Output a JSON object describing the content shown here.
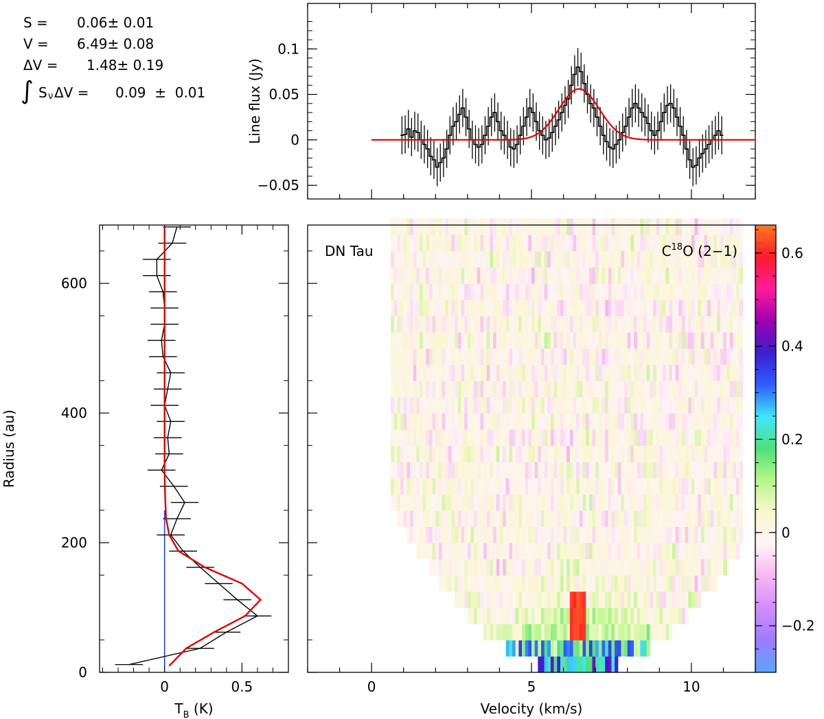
{
  "fit_results": {
    "s_label": "S =",
    "s_value": "0.06± 0.01",
    "v_label": "V =",
    "v_value": "6.49± 0.08",
    "dv_label": "ΔV =",
    "dv_value": "1.48± 0.19",
    "int_label": "∫S",
    "int_sub": "ν",
    "int_label2": "ΔV =",
    "int_value": "0.09  ±  0.01"
  },
  "colors": {
    "data": "#000000",
    "fit": "#e00000",
    "marker": "#1f3fdd"
  },
  "chart_data": [
    {
      "type": "line",
      "panel": "spectrum",
      "xlabel": "",
      "ylabel": "Line flux (Jy)",
      "xlim": [
        -2,
        12
      ],
      "ylim": [
        -0.065,
        0.15
      ],
      "yticks": [
        -0.05,
        0,
        0.05,
        0.1
      ],
      "ytick_labels": [
        "−0.05",
        "0",
        "0.05",
        "0.1"
      ],
      "xticks": [
        0,
        5,
        10
      ],
      "series": [
        {
          "style": "histogram-with-errorbars",
          "x": [
            0.95,
            1.05,
            1.15,
            1.25,
            1.35,
            1.45,
            1.55,
            1.65,
            1.75,
            1.85,
            1.95,
            2.05,
            2.15,
            2.25,
            2.35,
            2.45,
            2.55,
            2.65,
            2.75,
            2.85,
            2.95,
            3.05,
            3.15,
            3.25,
            3.35,
            3.45,
            3.55,
            3.65,
            3.75,
            3.85,
            3.95,
            4.05,
            4.15,
            4.25,
            4.35,
            4.45,
            4.55,
            4.65,
            4.75,
            4.85,
            4.95,
            5.05,
            5.15,
            5.25,
            5.35,
            5.45,
            5.55,
            5.65,
            5.75,
            5.85,
            5.95,
            6.05,
            6.15,
            6.25,
            6.35,
            6.45,
            6.55,
            6.65,
            6.75,
            6.85,
            6.95,
            7.05,
            7.15,
            7.25,
            7.35,
            7.45,
            7.55,
            7.65,
            7.75,
            7.85,
            7.95,
            8.05,
            8.15,
            8.25,
            8.35,
            8.45,
            8.55,
            8.65,
            8.75,
            8.85,
            8.95,
            9.05,
            9.15,
            9.25,
            9.35,
            9.45,
            9.55,
            9.65,
            9.75,
            9.85,
            9.95,
            10.05,
            10.15,
            10.25,
            10.35,
            10.45,
            10.55,
            10.65,
            10.75,
            10.85,
            10.95
          ],
          "y": [
            0.005,
            0.006,
            0.012,
            0.003,
            0.01,
            0.008,
            0.0,
            -0.005,
            -0.01,
            -0.018,
            -0.022,
            -0.03,
            -0.025,
            -0.02,
            -0.01,
            0.005,
            0.015,
            0.02,
            0.028,
            0.035,
            0.025,
            0.012,
            0.0,
            -0.005,
            -0.008,
            -0.005,
            0.005,
            0.015,
            0.025,
            0.03,
            0.02,
            0.01,
            0.005,
            0.0,
            -0.008,
            -0.01,
            -0.005,
            0.005,
            0.015,
            0.025,
            0.035,
            0.03,
            0.02,
            0.01,
            0.005,
            0.0,
            0.002,
            0.008,
            0.015,
            0.022,
            0.03,
            0.038,
            0.045,
            0.06,
            0.072,
            0.08,
            0.075,
            0.062,
            0.05,
            0.04,
            0.035,
            0.025,
            0.015,
            0.005,
            -0.002,
            -0.008,
            -0.01,
            -0.005,
            0.0,
            0.008,
            0.015,
            0.025,
            0.035,
            0.04,
            0.035,
            0.03,
            0.025,
            0.018,
            0.01,
            0.005,
            0.01,
            0.02,
            0.03,
            0.038,
            0.04,
            0.035,
            0.025,
            0.015,
            0.005,
            -0.01,
            -0.022,
            -0.03,
            -0.028,
            -0.02,
            -0.015,
            -0.01,
            -0.005,
            0.0,
            0.005,
            0.01,
            0.005
          ],
          "yerr": 0.021
        },
        {
          "style": "gaussian-fit",
          "amplitude": 0.056,
          "center": 6.49,
          "fwhm": 1.48,
          "x_range": [
            0,
            12
          ]
        }
      ]
    },
    {
      "type": "line",
      "panel": "radial-profile",
      "xlabel": "T",
      "xlabel_sub": "B",
      "xlabel_unit": " (K)",
      "ylabel": "Radius (au)",
      "xlim": [
        -0.42,
        0.8
      ],
      "ylim": [
        0,
        690
      ],
      "xticks": [
        0,
        0.5
      ],
      "xtick_labels": [
        "0",
        "0.5"
      ],
      "yticks": [
        0,
        200,
        400,
        600
      ],
      "ytick_labels": [
        "0",
        "200",
        "400",
        "600"
      ],
      "series": [
        {
          "style": "data-with-xerr",
          "r": [
            12,
            37,
            62,
            87,
            112,
            137,
            162,
            187,
            212,
            237,
            262,
            287,
            312,
            337,
            362,
            387,
            412,
            437,
            462,
            487,
            512,
            537,
            562,
            587,
            612,
            637,
            662,
            687
          ],
          "tb": [
            -0.23,
            0.23,
            0.4,
            0.6,
            0.47,
            0.35,
            0.23,
            0.12,
            0.04,
            0.08,
            0.13,
            0.06,
            -0.02,
            0.03,
            0.02,
            0.04,
            0.0,
            0.02,
            0.04,
            -0.01,
            -0.02,
            0.0,
            0.0,
            -0.01,
            -0.05,
            -0.05,
            0.05,
            0.08
          ],
          "xerr": 0.09
        },
        {
          "style": "model",
          "r": [
            10,
            37,
            62,
            87,
            112,
            137,
            162,
            187,
            212,
            237,
            262,
            287,
            312,
            337,
            362,
            387,
            412,
            437,
            462,
            487,
            512,
            537,
            562,
            587,
            612,
            637,
            662,
            687
          ],
          "tb": [
            0.03,
            0.14,
            0.32,
            0.52,
            0.62,
            0.5,
            0.26,
            0.09,
            0.03,
            0.01,
            0.005,
            0.002,
            0.0,
            0.0,
            0.0,
            0.0,
            0.0,
            0.0,
            0.0,
            0.0,
            0.0,
            0.0,
            0.0,
            0.0,
            0.0,
            0.0,
            0.0,
            0.0
          ]
        },
        {
          "style": "marker-line",
          "tb": 0.0,
          "r_range": [
            10,
            250
          ]
        }
      ]
    },
    {
      "type": "heatmap",
      "panel": "position-velocity",
      "title_left": "DN Tau",
      "title_right_pre": "C",
      "title_right_sup": "18",
      "title_right_post": "O (2−1)",
      "xlabel": "Velocity (km/s)",
      "xlim": [
        -2,
        12
      ],
      "ylim": [
        0,
        690
      ],
      "xticks": [
        0,
        5,
        10
      ],
      "xtick_labels": [
        "0",
        "5",
        "10"
      ],
      "velocity_range": [
        -0.1,
        11.5
      ],
      "channel_width": 0.1,
      "radius_bin": 25,
      "emission_center_velocity": 6.45,
      "emission_peak": 0.65,
      "colorbar": {
        "range": [
          -0.3,
          0.66
        ],
        "ticks": [
          -0.2,
          0,
          0.2,
          0.4,
          0.6
        ],
        "tick_labels": [
          "−0.2",
          "0",
          "0.2",
          "0.4",
          "0.6"
        ],
        "colormap": [
          "#5aa5ff",
          "#9a7cff",
          "#d28cff",
          "#f6b6f0",
          "#fff3f6",
          "#fbf7d0",
          "#b7f78a",
          "#4fe07a",
          "#41e6ff",
          "#2f5cff",
          "#3b1fcf",
          "#a000b0",
          "#ff1b9a",
          "#ff1a2a",
          "#ff7a20"
        ]
      }
    }
  ]
}
